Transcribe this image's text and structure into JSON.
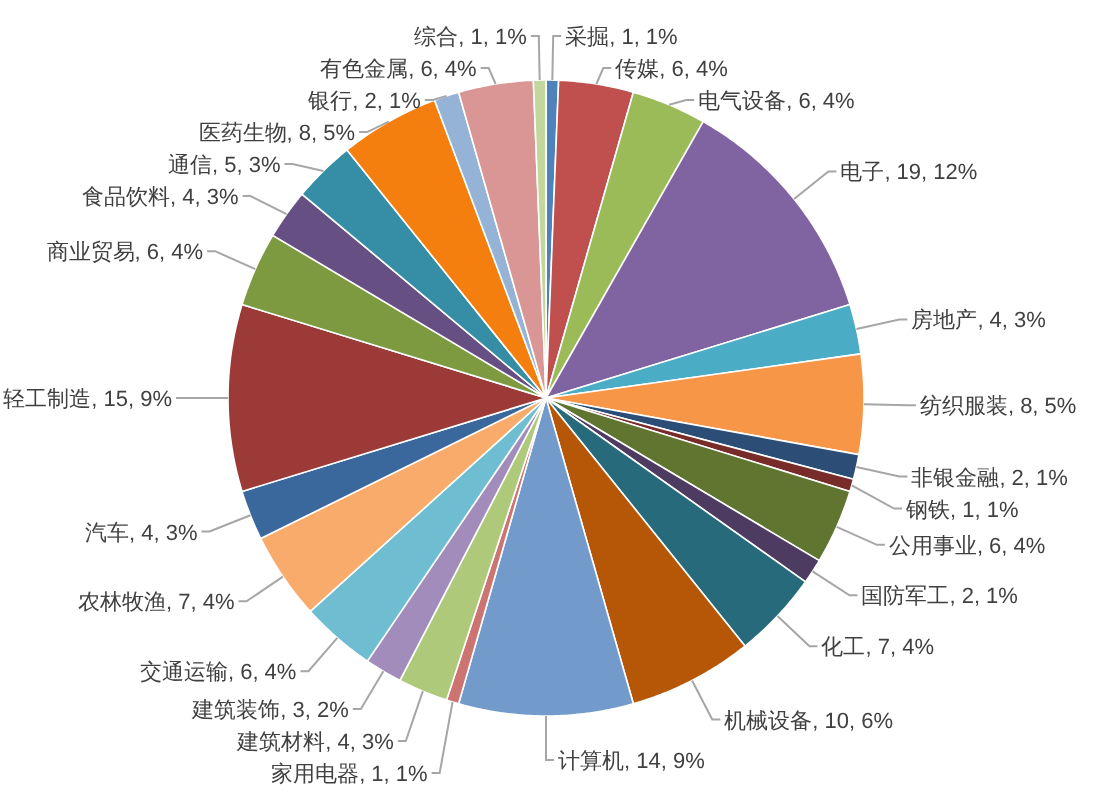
{
  "chart_data": {
    "type": "pie",
    "categories": [
      "采掘",
      "传媒",
      "电气设备",
      "电子",
      "房地产",
      "纺织服装",
      "非银金融",
      "钢铁",
      "公用事业",
      "国防军工",
      "化工",
      "机械设备",
      "计算机",
      "家用电器",
      "建筑材料",
      "建筑装饰",
      "交通运输",
      "农林牧渔",
      "汽车",
      "轻工制造",
      "商业贸易",
      "食品饮料",
      "通信",
      "医药生物",
      "银行",
      "有色金属",
      "综合"
    ],
    "values": [
      1,
      6,
      6,
      19,
      4,
      8,
      2,
      1,
      6,
      2,
      7,
      10,
      14,
      1,
      4,
      3,
      6,
      7,
      4,
      15,
      6,
      4,
      5,
      8,
      2,
      6,
      1
    ],
    "value_labels": [
      ", 1, 1%",
      ", 6, 4%",
      ", 6, 4%",
      ", 19, 12%",
      ", 4, 3%",
      ", 8, 5%",
      ", 2, 1%",
      ", 1, 1%",
      ", 6, 4%",
      ", 2, 1%",
      ", 7, 4%",
      ", 10, 6%",
      ", 14, 9%",
      ", 1, 1%",
      ", 4, 3%",
      ", 3, 2%",
      ", 6, 4%",
      ", 7, 4%",
      ", 4, 3%",
      ", 15, 9%",
      ", 6, 4%",
      ", 4, 3%",
      ", 5, 3%",
      ", 8, 5%",
      ", 2, 1%",
      ", 6, 4%",
      ", 1, 1%"
    ],
    "colors": [
      "#4f81bd",
      "#c0504d",
      "#9bbb59",
      "#8064a2",
      "#4bacc6",
      "#f79646",
      "#2c4d75",
      "#772c2a",
      "#5f7530",
      "#4d3b62",
      "#276a7c",
      "#b65708",
      "#729aca",
      "#cd7371",
      "#afc97a",
      "#a18cbb",
      "#6fbdd1",
      "#f9ab6b",
      "#3a679c",
      "#9c3a38",
      "#7e9a41",
      "#664f83",
      "#358ea6",
      "#f47f0e",
      "#95b3d7",
      "#d99694",
      "#c3d69b"
    ]
  }
}
